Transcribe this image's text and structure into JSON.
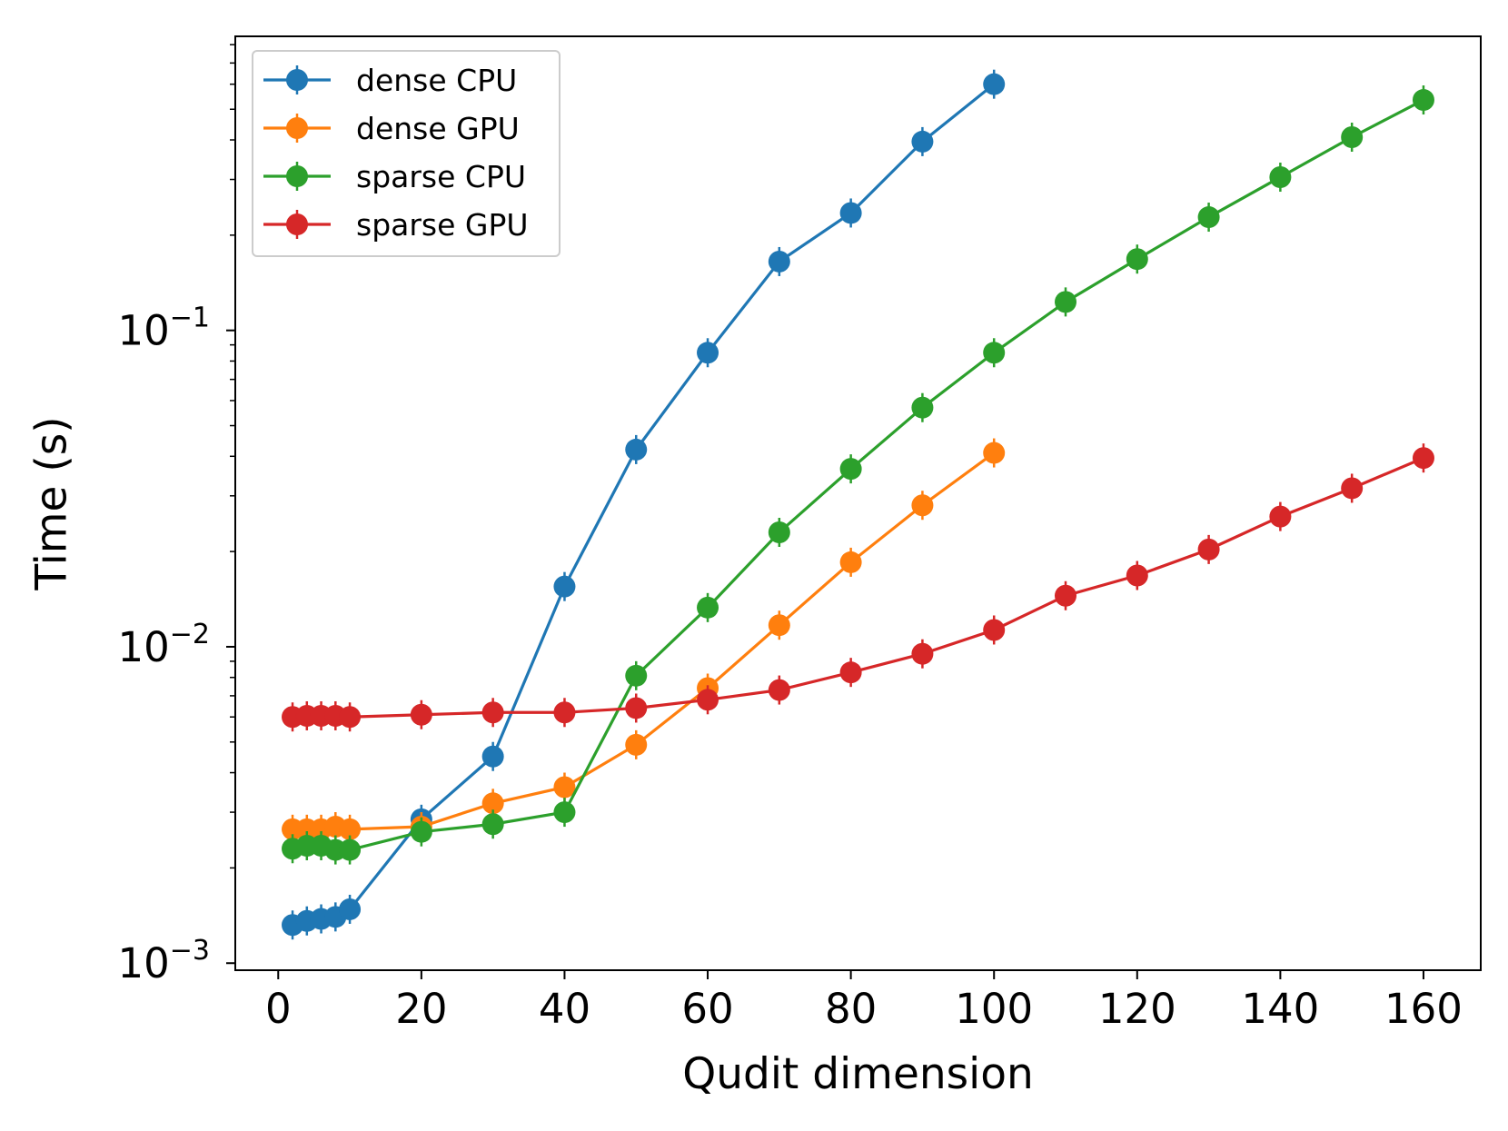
{
  "chart_data": {
    "type": "line",
    "xlabel": "Qudit dimension",
    "ylabel": "Time (s)",
    "xlim": [
      -6,
      168
    ],
    "ylim": [
      0.00095,
      0.85
    ],
    "yscale": "log",
    "grid": false,
    "legend_position": "top-left",
    "x_ticks": [
      {
        "value": 0,
        "label": "0"
      },
      {
        "value": 20,
        "label": "20"
      },
      {
        "value": 40,
        "label": "40"
      },
      {
        "value": 60,
        "label": "60"
      },
      {
        "value": 80,
        "label": "80"
      },
      {
        "value": 100,
        "label": "100"
      },
      {
        "value": 120,
        "label": "120"
      },
      {
        "value": 140,
        "label": "140"
      },
      {
        "value": 160,
        "label": "160"
      }
    ],
    "y_ticks": [
      {
        "value": 0.001,
        "base": "10",
        "exp": "−3"
      },
      {
        "value": 0.01,
        "base": "10",
        "exp": "−2"
      },
      {
        "value": 0.1,
        "base": "10",
        "exp": "−1"
      }
    ],
    "series": [
      {
        "name": "dense CPU",
        "color": "#1f77b4",
        "x": [
          2,
          4,
          6,
          8,
          10,
          20,
          30,
          40,
          50,
          60,
          70,
          80,
          90,
          100
        ],
        "values": [
          0.00132,
          0.00136,
          0.00138,
          0.0014,
          0.00148,
          0.00285,
          0.0045,
          0.0155,
          0.042,
          0.085,
          0.165,
          0.235,
          0.395,
          0.6
        ]
      },
      {
        "name": "dense GPU",
        "color": "#ff7f0e",
        "x": [
          2,
          4,
          6,
          8,
          10,
          20,
          30,
          40,
          50,
          60,
          70,
          80,
          90,
          100
        ],
        "values": [
          0.00265,
          0.00265,
          0.00265,
          0.0027,
          0.00265,
          0.0027,
          0.0032,
          0.0036,
          0.0049,
          0.0074,
          0.0117,
          0.0185,
          0.028,
          0.041
        ]
      },
      {
        "name": "sparse CPU",
        "color": "#2ca02c",
        "x": [
          2,
          4,
          6,
          8,
          10,
          20,
          30,
          40,
          50,
          60,
          70,
          80,
          90,
          100,
          110,
          120,
          130,
          140,
          150,
          160
        ],
        "values": [
          0.0023,
          0.00235,
          0.00235,
          0.00228,
          0.00228,
          0.0026,
          0.00275,
          0.003,
          0.0081,
          0.0133,
          0.023,
          0.0365,
          0.057,
          0.085,
          0.123,
          0.168,
          0.228,
          0.305,
          0.408,
          0.535
        ]
      },
      {
        "name": "sparse GPU",
        "color": "#d62728",
        "x": [
          2,
          4,
          6,
          8,
          10,
          20,
          30,
          40,
          50,
          60,
          70,
          80,
          90,
          100,
          110,
          120,
          130,
          140,
          150,
          160
        ],
        "values": [
          0.006,
          0.00605,
          0.00605,
          0.00605,
          0.006,
          0.0061,
          0.0062,
          0.0062,
          0.0064,
          0.0068,
          0.0073,
          0.0083,
          0.0095,
          0.0113,
          0.0145,
          0.0168,
          0.0203,
          0.0258,
          0.0317,
          0.0395
        ]
      }
    ]
  }
}
